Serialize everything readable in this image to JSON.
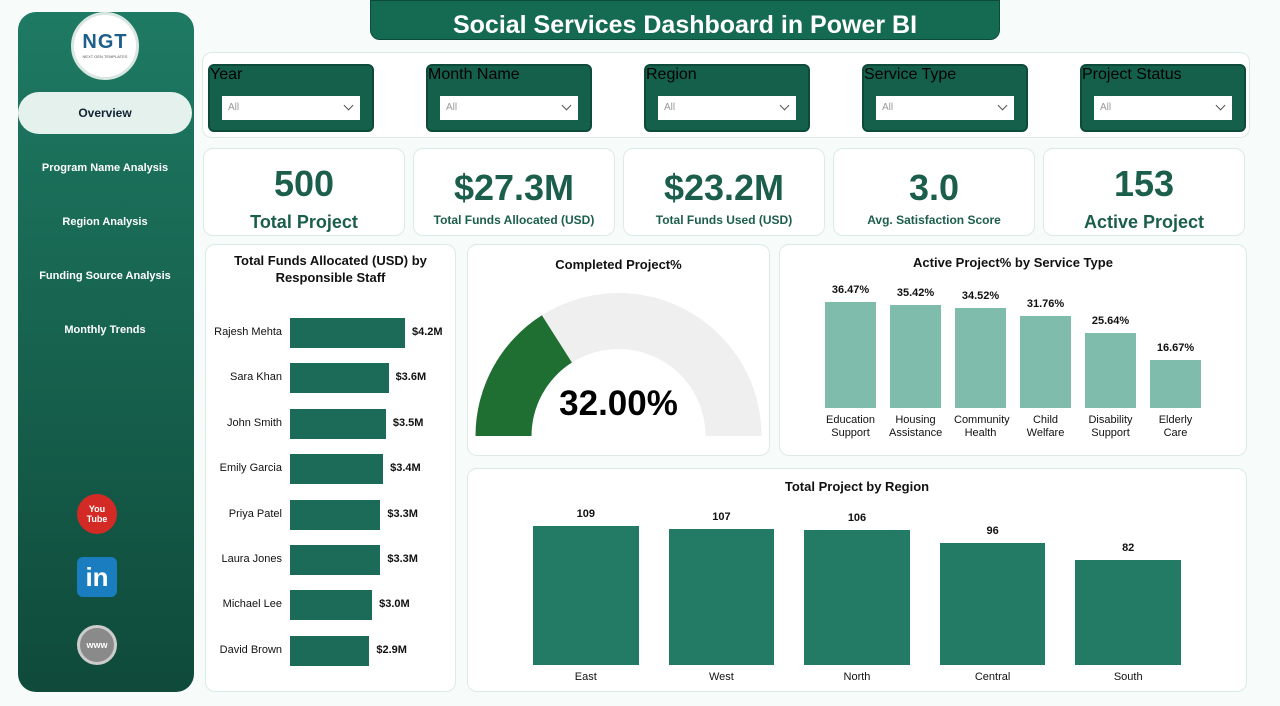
{
  "title": "Social Services Dashboard  in Power BI",
  "logo": {
    "text": "NGT",
    "subtext": "NEXT GEN TEMPLATES"
  },
  "nav": [
    "Overview",
    "Program Name Analysis",
    "Region Analysis",
    "Funding Source Analysis",
    "Monthly Trends"
  ],
  "social": {
    "youtube": [
      "You",
      "Tube"
    ],
    "linkedin": "in",
    "web": "www"
  },
  "filters": [
    {
      "label": "Year",
      "value": "All"
    },
    {
      "label": "Month Name",
      "value": "All"
    },
    {
      "label": "Region",
      "value": "All"
    },
    {
      "label": "Service Type",
      "value": "All"
    },
    {
      "label": "Project Status",
      "value": "All"
    }
  ],
  "kpis": [
    {
      "value": "500",
      "label": "Total Project"
    },
    {
      "value": "$27.3M",
      "label": "Total Funds Allocated (USD)"
    },
    {
      "value": "$23.2M",
      "label": "Total Funds Used (USD)"
    },
    {
      "value": "3.0",
      "label": "Avg. Satisfaction Score"
    },
    {
      "value": "153",
      "label": "Active Project"
    }
  ],
  "chart_data": [
    {
      "type": "bar",
      "orientation": "horizontal",
      "title": "Total Funds Allocated (USD) by Responsible Staff",
      "categories": [
        "Rajesh Mehta",
        "Sara Khan",
        "John Smith",
        "Emily Garcia",
        "Priya Patel",
        "Laura Jones",
        "Michael Lee",
        "David Brown"
      ],
      "values": [
        4200000,
        3600000,
        3500000,
        3400000,
        3300000,
        3300000,
        3000000,
        2900000
      ],
      "value_labels": [
        "$4.2M",
        "$3.6M",
        "$3.5M",
        "$3.4M",
        "$3.3M",
        "$3.3M",
        "$3.0M",
        "$2.9M"
      ],
      "color": "#1c6b58"
    },
    {
      "type": "gauge",
      "title": "Completed Project%",
      "value": 32,
      "value_label": "32.00%",
      "ylim": [
        0,
        100
      ],
      "color": "#1f6f33",
      "track_color": "#f0efef"
    },
    {
      "type": "bar",
      "orientation": "vertical",
      "title": "Active Project% by Service Type",
      "categories": [
        "Education Support",
        "Housing Assistance",
        "Community Health",
        "Child Welfare",
        "Disability Support",
        "Elderly Care"
      ],
      "values": [
        36.47,
        35.42,
        34.52,
        31.76,
        25.64,
        16.67
      ],
      "value_labels": [
        "36.47%",
        "35.42%",
        "34.52%",
        "31.76%",
        "25.64%",
        "16.67%"
      ],
      "color": "#7fbcab"
    },
    {
      "type": "bar",
      "orientation": "vertical",
      "title": "Total Project by Region",
      "categories": [
        "East",
        "West",
        "North",
        "Central",
        "South"
      ],
      "values": [
        109,
        107,
        106,
        96,
        82
      ],
      "color": "#237a65"
    }
  ]
}
